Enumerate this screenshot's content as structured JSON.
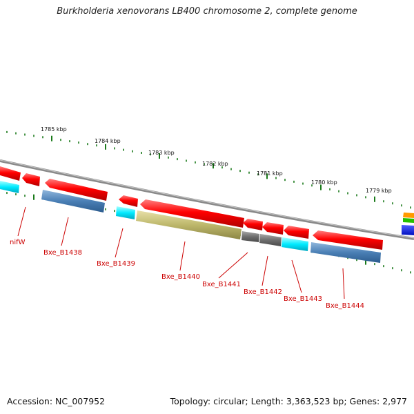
{
  "title": "Burkholderia xenovorans LB400 chromosome 2, complete genome",
  "accession": "Accession: NC_007952",
  "summary": "Topology: circular; Length: 3,363,523 bp; Genes: 2,977",
  "ruler_labels": [
    "1785 kbp",
    "1784 kbp",
    "1783 kbp",
    "1782 kbp",
    "1781 kbp",
    "1780 kbp",
    "1779 kbp"
  ],
  "gene_labels": [
    "nifW",
    "Bxe_B1438",
    "Bxe_B1439",
    "Bxe_B1440",
    "Bxe_B1441",
    "Bxe_B1442",
    "Bxe_B1443",
    "Bxe_B1444"
  ],
  "colors": {
    "backbone": "#808080",
    "cds": "#ff0000",
    "cyan_feature": "#00e5ff",
    "blue_feature": "#4a7fb5",
    "olive_feature": "#bdb76b",
    "gray_feature": "#707070",
    "tick": "#1a7a1a",
    "label": "#cc0000"
  }
}
